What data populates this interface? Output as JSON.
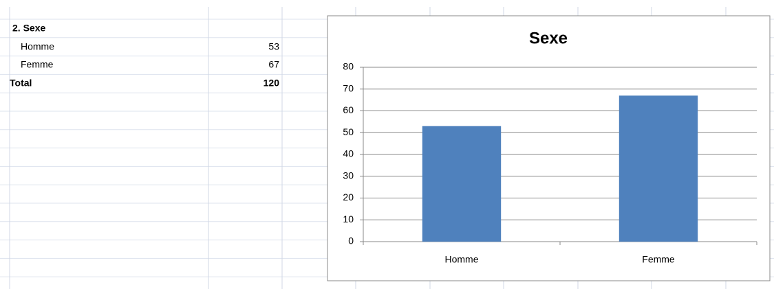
{
  "table": {
    "title": "2. Sexe",
    "rows": [
      [
        "Homme",
        53
      ],
      [
        "Femme",
        67
      ]
    ],
    "total": [
      "Total",
      120
    ]
  },
  "chart_data": {
    "type": "bar",
    "title": "Sexe",
    "categories": [
      "Homme",
      "Femme"
    ],
    "values": [
      53,
      67
    ],
    "color": "#4f81bd",
    "ylim": [
      0,
      80
    ],
    "yticks": [
      0,
      10,
      20,
      30,
      40,
      50,
      60,
      70,
      80
    ],
    "grid": true
  }
}
